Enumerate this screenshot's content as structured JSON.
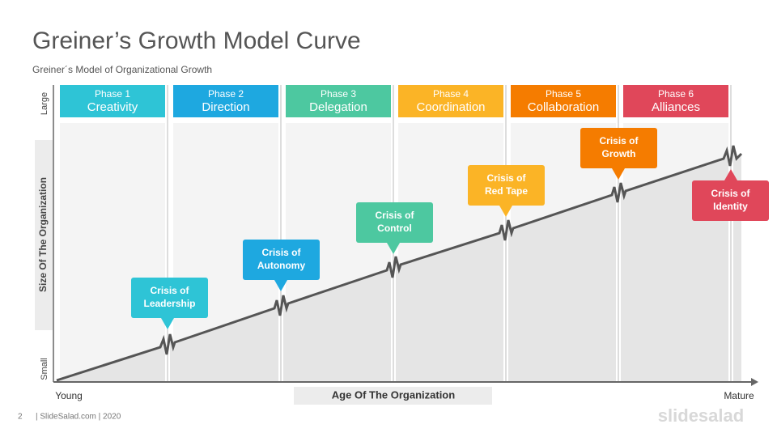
{
  "title": "Greiner’s Growth Model Curve",
  "subtitle": "Greiner´s  Model of Organizational  Growth",
  "phases": [
    {
      "label": "Phase 1",
      "name": "Creativity"
    },
    {
      "label": "Phase 2",
      "name": "Direction"
    },
    {
      "label": "Phase 3",
      "name": "Delegation"
    },
    {
      "label": "Phase 4",
      "name": "Coordination"
    },
    {
      "label": "Phase 5",
      "name": "Collaboration"
    },
    {
      "label": "Phase 6",
      "name": "Alliances"
    }
  ],
  "crises": [
    [
      "Crisis of",
      "Leadership"
    ],
    [
      "Crisis of",
      "Autonomy"
    ],
    [
      "Crisis of",
      "Control"
    ],
    [
      "Crisis of",
      "Red Tape"
    ],
    [
      "Crisis of",
      "Growth"
    ],
    [
      "Crisis of",
      "Identity"
    ]
  ],
  "y_axis": {
    "top": "Large",
    "bottom": "Small",
    "title": "Size Of The Organization"
  },
  "x_axis": {
    "start": "Young",
    "end": "Mature",
    "title": "Age Of The Organization"
  },
  "footer": {
    "page": "2",
    "credit": "| SlideSalad.com | 2020",
    "logo": "slidesalad"
  }
}
